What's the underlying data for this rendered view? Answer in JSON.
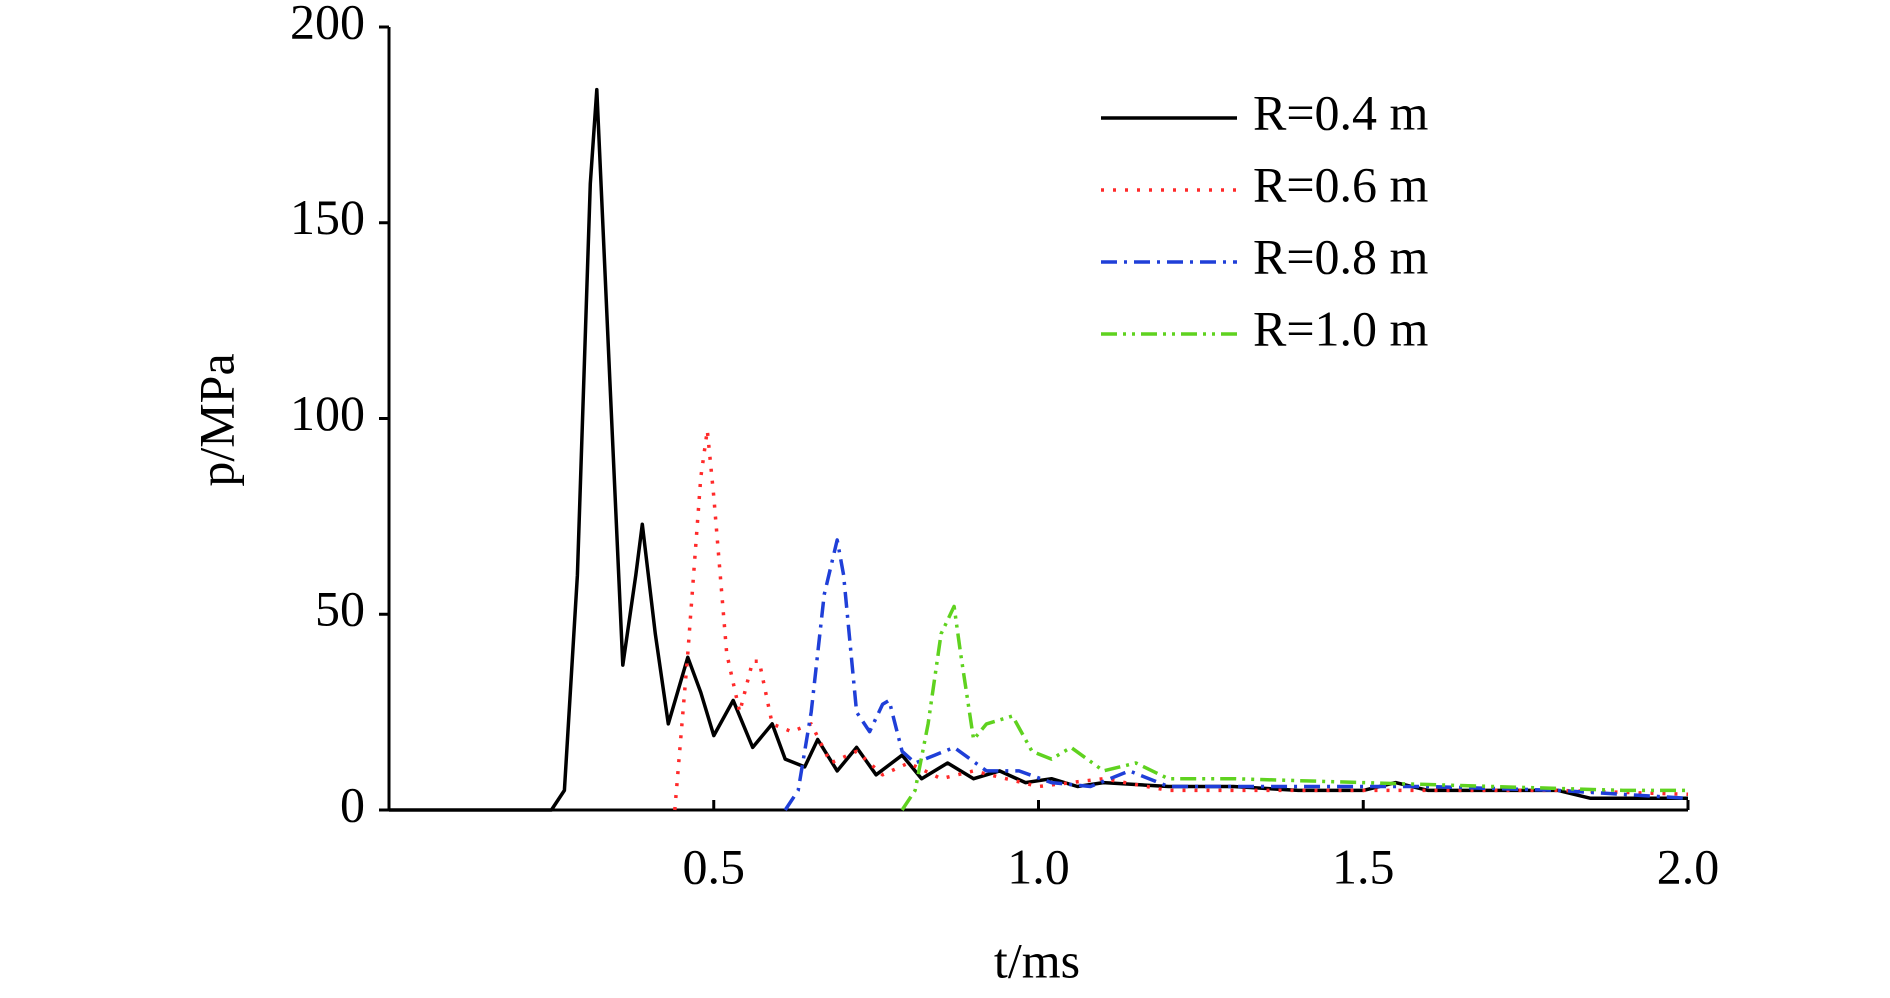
{
  "chart_data": {
    "type": "line",
    "xlabel": "t/ms",
    "ylabel": "p/MPa",
    "xlim": [
      0,
      2.0
    ],
    "ylim": [
      0,
      200
    ],
    "xticks": [
      0.5,
      {
        "value": 1,
        "label": "1.0"
      },
      1.5,
      {
        "value": 2,
        "label": "2.0"
      }
    ],
    "yticks": [
      0,
      50,
      100,
      150,
      200
    ],
    "legend": "upper right",
    "series": [
      {
        "name": "R=0.4 m",
        "color": "#000000",
        "linestyle": "solid",
        "x": [
          0,
          0.25,
          0.27,
          0.29,
          0.31,
          0.32,
          0.34,
          0.36,
          0.38,
          0.39,
          0.41,
          0.43,
          0.46,
          0.48,
          0.5,
          0.53,
          0.56,
          0.59,
          0.61,
          0.64,
          0.66,
          0.69,
          0.72,
          0.75,
          0.79,
          0.82,
          0.86,
          0.9,
          0.94,
          0.98,
          1.02,
          1.06,
          1.1,
          1.2,
          1.3,
          1.4,
          1.5,
          1.55,
          1.6,
          1.7,
          1.8,
          1.85,
          1.9,
          2.0
        ],
        "values": [
          0,
          0,
          5,
          60,
          160,
          184,
          110,
          37,
          60,
          73,
          45,
          22,
          39,
          30,
          19,
          28,
          16,
          22,
          13,
          11,
          18,
          10,
          16,
          9,
          14,
          8,
          12,
          8,
          10,
          7,
          8,
          6,
          7,
          6,
          6,
          5,
          5,
          7,
          5,
          5,
          5,
          3,
          3,
          3
        ]
      },
      {
        "name": "R=0.6 m",
        "color": "#ff2a2a",
        "linestyle": "dotted",
        "x": [
          0.44,
          0.46,
          0.48,
          0.49,
          0.5,
          0.52,
          0.54,
          0.56,
          0.57,
          0.59,
          0.62,
          0.65,
          0.68,
          0.72,
          0.76,
          0.8,
          0.85,
          0.9,
          1.0,
          1.1,
          1.2,
          1.4,
          1.6,
          1.8,
          2.0
        ],
        "values": [
          0,
          40,
          85,
          97,
          80,
          40,
          25,
          38,
          38,
          22,
          20,
          22,
          12,
          15,
          9,
          12,
          8,
          10,
          6,
          8,
          5,
          5,
          5,
          5,
          4
        ]
      },
      {
        "name": "R=0.8 m",
        "color": "#1f3fd8",
        "linestyle": "dashdot",
        "x": [
          0.61,
          0.63,
          0.65,
          0.67,
          0.69,
          0.7,
          0.72,
          0.74,
          0.76,
          0.77,
          0.79,
          0.81,
          0.84,
          0.87,
          0.92,
          0.97,
          1.02,
          1.08,
          1.14,
          1.2,
          1.4,
          1.6,
          1.8,
          2.0
        ],
        "values": [
          0,
          5,
          25,
          55,
          69,
          60,
          25,
          20,
          27,
          28,
          15,
          12,
          14,
          16,
          10,
          10,
          7,
          6,
          10,
          6,
          6,
          6,
          5,
          3
        ]
      },
      {
        "name": "R=1.0 m",
        "color": "#5fd21f",
        "linestyle": "dashdotdot",
        "x": [
          0.79,
          0.81,
          0.83,
          0.85,
          0.87,
          0.88,
          0.9,
          0.92,
          0.94,
          0.96,
          0.99,
          1.02,
          1.05,
          1.1,
          1.15,
          1.2,
          1.3,
          1.5,
          1.7,
          1.9,
          2.0
        ],
        "values": [
          0,
          5,
          22,
          45,
          52,
          40,
          18,
          22,
          23,
          24,
          15,
          13,
          16,
          10,
          12,
          8,
          8,
          7,
          6,
          5,
          5
        ]
      }
    ]
  }
}
